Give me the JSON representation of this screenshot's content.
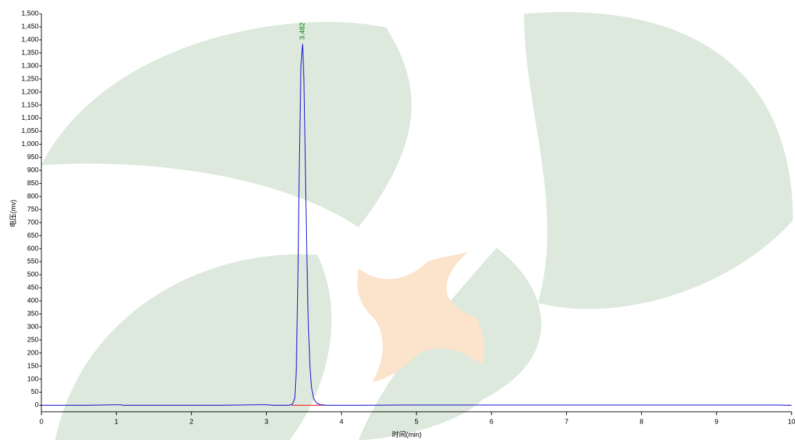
{
  "chart_data": {
    "type": "line",
    "xlabel": "时间(min)",
    "ylabel": "电压(mv)",
    "xlim": [
      0,
      10
    ],
    "ylim": [
      -25,
      1500
    ],
    "xticks": [
      0,
      1,
      2,
      3,
      4,
      5,
      6,
      7,
      8,
      9,
      10
    ],
    "yticks": [
      0,
      50,
      100,
      150,
      200,
      250,
      300,
      350,
      400,
      450,
      500,
      550,
      600,
      650,
      700,
      750,
      800,
      850,
      900,
      950,
      {
        "value": 1000,
        "label": "1,000"
      },
      {
        "value": 1050,
        "label": "1,050"
      },
      {
        "value": 1100,
        "label": "1,100"
      },
      {
        "value": 1150,
        "label": "1,150"
      },
      {
        "value": 1200,
        "label": "1,200"
      },
      {
        "value": 1250,
        "label": "1,250"
      },
      {
        "value": 1300,
        "label": "1,300"
      },
      {
        "value": 1350,
        "label": "1,350"
      },
      {
        "value": 1400,
        "label": "1,400"
      },
      {
        "value": 1450,
        "label": "1,450"
      },
      {
        "value": 1500,
        "label": "1,500"
      }
    ],
    "grid": false,
    "series": [
      {
        "color": "#0000cc",
        "x": [
          0,
          0.3,
          0.5,
          0.6,
          1.0,
          1.05,
          1.1,
          1.4,
          1.5,
          2.4,
          2.9,
          3.0,
          3.1,
          3.3,
          3.35,
          3.38,
          3.4,
          3.42,
          3.44,
          3.46,
          3.482,
          3.5,
          3.52,
          3.54,
          3.56,
          3.58,
          3.6,
          3.63,
          3.67,
          3.72,
          3.8,
          4.0,
          4.3,
          4.8,
          6.0,
          8.5,
          9.8,
          10
        ],
        "values": [
          0,
          0,
          0,
          0,
          2,
          2,
          0,
          0,
          0,
          0,
          2,
          2,
          0,
          0,
          5,
          30,
          150,
          500,
          950,
          1300,
          1385,
          1250,
          900,
          550,
          300,
          150,
          70,
          25,
          8,
          2,
          0,
          0,
          0,
          1,
          1,
          1,
          1,
          0
        ]
      }
    ],
    "baseline": {
      "color": "#ff0000",
      "x": [
        3.33,
        4.3
      ],
      "values": [
        0,
        0
      ]
    },
    "annotations": [
      {
        "x": 3.482,
        "y": 1385,
        "label": "3.482",
        "color": "#008000"
      }
    ]
  }
}
